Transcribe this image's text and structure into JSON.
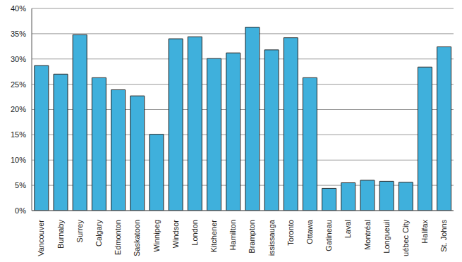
{
  "chart_data": {
    "type": "bar",
    "categories": [
      "Vancouver",
      "Burnaby",
      "Surrey",
      "Calgary",
      "Edmonton",
      "Saskatoon",
      "Winnipeg",
      "Windsor",
      "London",
      "Kitchener",
      "Hamilton",
      "Brampton",
      "Mississauga",
      "Toronto",
      "Ottawa",
      "Gatineau",
      "Laval",
      "Montréal",
      "Longueuil",
      "Québec City",
      "Halifax",
      "St. Johns"
    ],
    "values": [
      28.7,
      27.0,
      34.8,
      26.3,
      23.9,
      22.7,
      15.1,
      34.0,
      34.4,
      30.1,
      31.2,
      36.3,
      31.8,
      34.2,
      26.3,
      4.4,
      5.5,
      6.0,
      5.8,
      5.6,
      28.4,
      32.4
    ],
    "color": "#3fb0dc",
    "ylim": [
      0,
      40
    ],
    "yticks": [
      {
        "value": 0,
        "label": "0%"
      },
      {
        "value": 5,
        "label": "5%"
      },
      {
        "value": 10,
        "label": "10%"
      },
      {
        "value": 15,
        "label": "15%"
      },
      {
        "value": 20,
        "label": "20%"
      },
      {
        "value": 25,
        "label": "25%"
      },
      {
        "value": 30,
        "label": "30%"
      },
      {
        "value": 35,
        "label": "35%"
      },
      {
        "value": 40,
        "label": "40%"
      }
    ],
    "grid": true
  }
}
